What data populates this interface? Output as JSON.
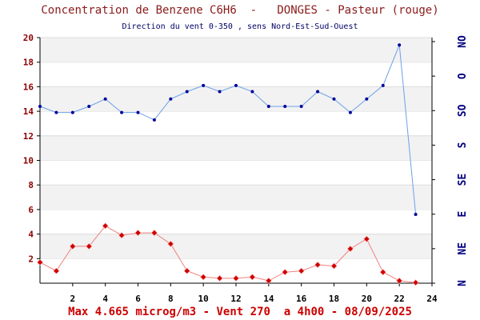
{
  "title": "Concentration de Benzene C6H6  -   DONGES - Pasteur (rouge)",
  "subtitle": "Direction du vent 0-350 , sens Nord-Est-Sud-Ouest",
  "footer": "Max 4.665 microg/m3 - Vent 270  a 4h00 - 08/09/2025",
  "colors": {
    "title": "#8b1a1a",
    "subtitle": "#000066",
    "footer": "#cc0000",
    "band": "#f2f2f2",
    "benzene_line": "#f08080",
    "benzene_marker": "#cc0000",
    "wind_line": "#6aa0e8",
    "wind_marker": "#000099",
    "left_ticks": "#8b0000",
    "right_labels": "#000080"
  },
  "chart_data": {
    "type": "line",
    "xlim": [
      0,
      24
    ],
    "x_ticks": [
      "2",
      "4",
      "6",
      "8",
      "10",
      "12",
      "14",
      "16",
      "18",
      "20",
      "22",
      "24"
    ],
    "ylim": [
      0,
      20
    ],
    "y_ticks": [
      "2",
      "4",
      "6",
      "8",
      "10",
      "12",
      "14",
      "16",
      "18",
      "20"
    ],
    "right_axis_labels": [
      "N",
      "NE",
      "E",
      "SE",
      "S",
      "SO",
      "O",
      "NO"
    ],
    "grid": "alternating horizontal bands",
    "x": [
      0,
      1,
      2,
      3,
      4,
      5,
      6,
      7,
      8,
      9,
      10,
      11,
      12,
      13,
      14,
      15,
      16,
      17,
      18,
      19,
      20,
      21,
      22,
      23
    ],
    "series": [
      {
        "role": "benzene",
        "values": [
          1.7,
          1.0,
          3.0,
          3.0,
          4.665,
          3.9,
          4.1,
          4.1,
          3.2,
          1.0,
          0.5,
          0.4,
          0.4,
          0.5,
          0.2,
          0.9,
          1.0,
          1.5,
          1.4,
          2.8,
          3.6,
          0.9,
          0.2,
          0.05
        ],
        "marker": "diamond"
      },
      {
        "role": "wind",
        "values": [
          14.4,
          13.9,
          13.9,
          14.4,
          15.0,
          13.9,
          13.9,
          13.3,
          15.0,
          15.6,
          16.1,
          15.6,
          16.1,
          15.6,
          14.4,
          14.4,
          14.4,
          15.6,
          15.0,
          13.9,
          15.0,
          16.1,
          19.4,
          5.6
        ],
        "marker": "dot"
      }
    ]
  }
}
